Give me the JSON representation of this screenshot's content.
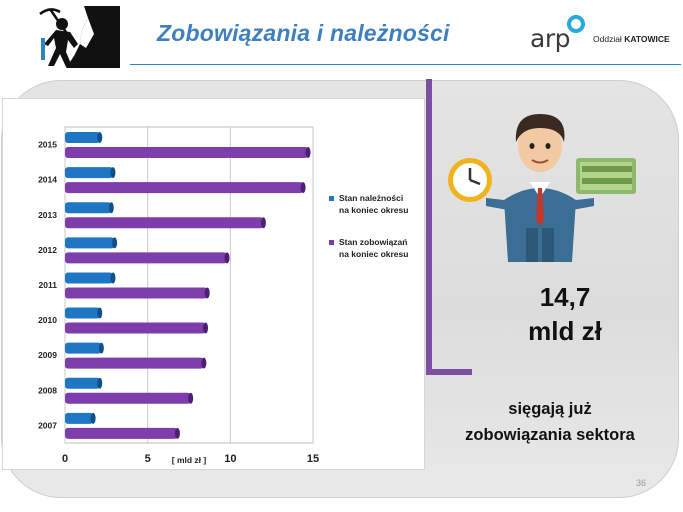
{
  "header": {
    "title": "Zobowiązania i należności",
    "logo_text": "arp",
    "logo_dept_prefix": "Oddział",
    "logo_dept_name": "KATOWICE"
  },
  "highlight": {
    "value_line1": "14,7",
    "value_line2": "mld zł",
    "caption_line1": "sięgają  już",
    "caption_line2": "zobowiązania  sektora"
  },
  "page_number": "36",
  "colors": {
    "title": "#3f7fbf",
    "receivables": "#1f77c4",
    "liabilities": "#7d3dab",
    "bracket": "#7b4fa3"
  },
  "icons": [
    "miner-icon",
    "businessman-icon",
    "clock-icon",
    "money-icon",
    "arp-logo-ring-icon"
  ],
  "chart_data": {
    "type": "bar",
    "orientation": "horizontal",
    "categories": [
      "2007",
      "2008",
      "2009",
      "2010",
      "2011",
      "2012",
      "2013",
      "2014",
      "2015"
    ],
    "series": [
      {
        "name": "Stan należności na koniec okresu",
        "values": [
          1.7,
          2.1,
          2.2,
          2.1,
          2.9,
          3.0,
          2.8,
          2.9,
          2.1
        ]
      },
      {
        "name": "Stan zobowiązań na koniec okresu",
        "values": [
          6.8,
          7.6,
          8.4,
          8.5,
          8.6,
          9.8,
          12.0,
          14.4,
          14.7
        ]
      }
    ],
    "legend": [
      {
        "line1": "Stan należności",
        "line2": "na koniec okresu"
      },
      {
        "line1": "Stan zobowiązań",
        "line2": "na koniec okresu"
      }
    ],
    "xlabel": "[ mld zł ]",
    "xlim": [
      0,
      15
    ],
    "xticks": [
      "0",
      "5",
      "10",
      "15"
    ],
    "grid": true,
    "legend_position": "right"
  }
}
